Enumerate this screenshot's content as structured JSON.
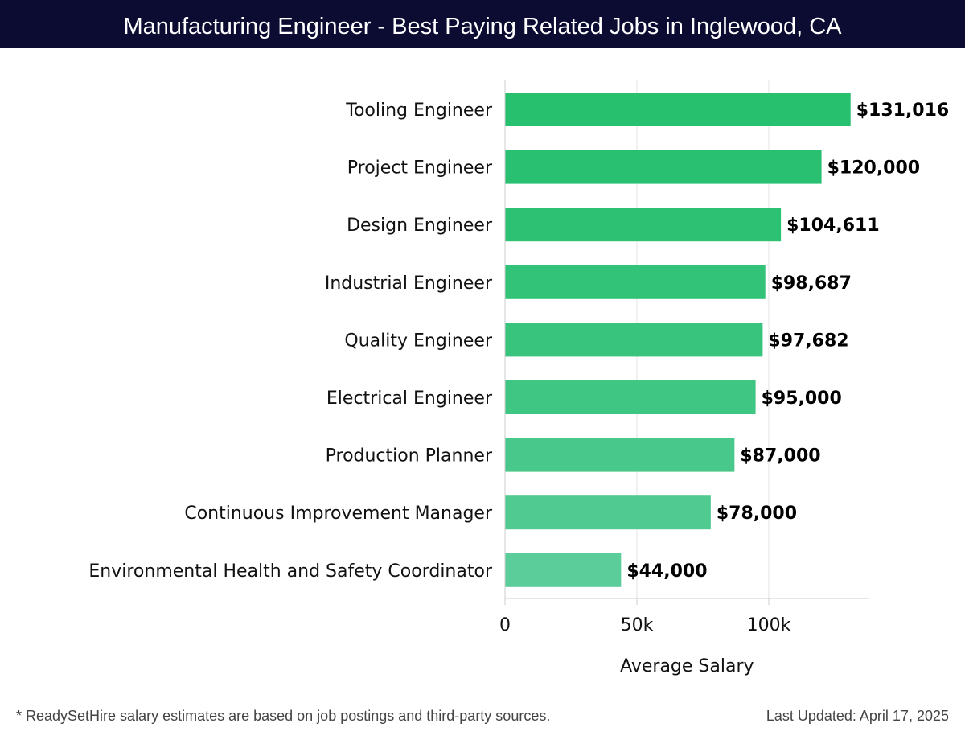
{
  "header": {
    "title": "Manufacturing Engineer - Best Paying Related Jobs in Inglewood, CA"
  },
  "chart_data": {
    "type": "bar",
    "orientation": "horizontal",
    "categories": [
      "Tooling Engineer",
      "Project Engineer",
      "Design Engineer",
      "Industrial Engineer",
      "Quality Engineer",
      "Electrical Engineer",
      "Production Planner",
      "Continuous Improvement Manager",
      "Environmental Health and Safety Coordinator"
    ],
    "values": [
      131016,
      120000,
      104611,
      98687,
      97682,
      95000,
      87000,
      78000,
      44000
    ],
    "value_labels": [
      "$131,016",
      "$120,000",
      "$104,611",
      "$98,687",
      "$97,682",
      "$95,000",
      "$87,000",
      "$78,000",
      "$44,000"
    ],
    "xlabel": "Average Salary",
    "xlim": [
      0,
      138000
    ],
    "xticks": [
      0,
      50000,
      100000
    ],
    "xtick_labels": [
      "0",
      "50k",
      "100k"
    ],
    "grid": "vertical",
    "colors": {
      "bar_top": "#27c06f",
      "bar_bottom": "#5bcd9a"
    }
  },
  "footer": {
    "note": "* ReadySetHire salary estimates are based on job postings and third-party sources.",
    "updated": "Last Updated: April 17, 2025"
  }
}
